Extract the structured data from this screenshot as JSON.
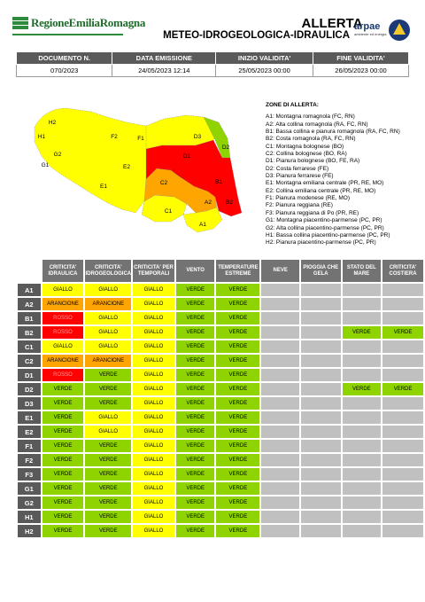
{
  "header": {
    "org_logo": "RegioneEmiliaRomagna",
    "title": "ALLERTA",
    "subtitle": "METEO-IDROGEOLOGICA-IDRAULICA",
    "arpae_logo": "arpae",
    "arpae_tagline": "ambiente ed energia",
    "pc_logo_icon": "protezione-civile-icon"
  },
  "doc_info": {
    "headers": [
      "DOCUMENTO N.",
      "DATA EMISSIONE",
      "INIZIO VALIDITA'",
      "FINE VALIDITA'"
    ],
    "values": [
      "070/2023",
      "24/05/2023 12:14",
      "25/05/2023 00:00",
      "26/05/2023 00:00"
    ]
  },
  "map": {
    "labels": [
      "H2",
      "H1",
      "G2",
      "G1",
      "F2",
      "F1",
      "E2",
      "E1",
      "D3",
      "D1",
      "D2",
      "C1",
      "C2",
      "B1",
      "B2",
      "A2",
      "A1"
    ],
    "colors": {
      "giallo": "#ffff00",
      "verde": "#8fd400",
      "arancione": "#ffa500",
      "rosso": "#ff0000"
    }
  },
  "legend": {
    "title": "ZONE DI ALLERTA:",
    "items": [
      "A1: Montagna romagnola (FC, RN)",
      "A2: Alta collina romagnola (RA, FC, RN)",
      "B1: Bassa collina e pianura romagnola (RA, FC, RN)",
      "B2: Costa romagnola (RA, FC, RN)",
      "C1: Montagna bolognese (BO)",
      "C2: Collina bolognese (BO, RA)",
      "D1: Pianura bolognese (BO, FE, RA)",
      "D2: Costa ferrarese (FE)",
      "D3: Pianura ferrarese (FE)",
      "E1: Montagna emiliana centrale (PR, RE, MO)",
      "E2: Collina emiliana centrale (PR, RE, MO)",
      "F1: Pianura modenese (RE, MO)",
      "F2: Pianura reggiana (RE)",
      "F3: Pianura reggiana di Po (PR, RE)",
      "G1: Montagna piacentino-parmense (PC, PR)",
      "G2: Alta collina piacentino-parmense (PC, PR)",
      "H1: Bassa collina piacentino-parmense (PC, PR)",
      "H2: Pianura piacentino-parmense (PC, PR)"
    ]
  },
  "alert_table": {
    "columns": [
      "CRITICITA' IDRAULICA",
      "CRITICITA' IDROGEOLOGICA",
      "CRITICITA' PER TEMPORALI",
      "VENTO",
      "TEMPERATURE ESTREME",
      "NEVE",
      "PIOGGIA CHE GELA",
      "STATO DEL MARE",
      "CRITICITA' COSTIERA"
    ],
    "rows": [
      {
        "zone": "A1",
        "cells": [
          "GIALLO",
          "GIALLO",
          "GIALLO",
          "VERDE",
          "VERDE",
          "",
          "",
          "",
          ""
        ]
      },
      {
        "zone": "A2",
        "cells": [
          "ARANCIONE",
          "ARANCIONE",
          "GIALLO",
          "VERDE",
          "VERDE",
          "",
          "",
          "",
          ""
        ]
      },
      {
        "zone": "B1",
        "cells": [
          "ROSSO",
          "GIALLO",
          "GIALLO",
          "VERDE",
          "VERDE",
          "",
          "",
          "",
          ""
        ]
      },
      {
        "zone": "B2",
        "cells": [
          "ROSSO",
          "GIALLO",
          "GIALLO",
          "VERDE",
          "VERDE",
          "",
          "",
          "VERDE",
          "VERDE"
        ]
      },
      {
        "zone": "C1",
        "cells": [
          "GIALLO",
          "GIALLO",
          "GIALLO",
          "VERDE",
          "VERDE",
          "",
          "",
          "",
          ""
        ]
      },
      {
        "zone": "C2",
        "cells": [
          "ARANCIONE",
          "ARANCIONE",
          "GIALLO",
          "VERDE",
          "VERDE",
          "",
          "",
          "",
          ""
        ]
      },
      {
        "zone": "D1",
        "cells": [
          "ROSSO",
          "VERDE",
          "GIALLO",
          "VERDE",
          "VERDE",
          "",
          "",
          "",
          ""
        ]
      },
      {
        "zone": "D2",
        "cells": [
          "VERDE",
          "VERDE",
          "GIALLO",
          "VERDE",
          "VERDE",
          "",
          "",
          "VERDE",
          "VERDE"
        ]
      },
      {
        "zone": "D3",
        "cells": [
          "VERDE",
          "VERDE",
          "GIALLO",
          "VERDE",
          "VERDE",
          "",
          "",
          "",
          ""
        ]
      },
      {
        "zone": "E1",
        "cells": [
          "VERDE",
          "GIALLO",
          "GIALLO",
          "VERDE",
          "VERDE",
          "",
          "",
          "",
          ""
        ]
      },
      {
        "zone": "E2",
        "cells": [
          "VERDE",
          "GIALLO",
          "GIALLO",
          "VERDE",
          "VERDE",
          "",
          "",
          "",
          ""
        ]
      },
      {
        "zone": "F1",
        "cells": [
          "VERDE",
          "VERDE",
          "GIALLO",
          "VERDE",
          "VERDE",
          "",
          "",
          "",
          ""
        ]
      },
      {
        "zone": "F2",
        "cells": [
          "VERDE",
          "VERDE",
          "GIALLO",
          "VERDE",
          "VERDE",
          "",
          "",
          "",
          ""
        ]
      },
      {
        "zone": "F3",
        "cells": [
          "VERDE",
          "VERDE",
          "GIALLO",
          "VERDE",
          "VERDE",
          "",
          "",
          "",
          ""
        ]
      },
      {
        "zone": "G1",
        "cells": [
          "VERDE",
          "VERDE",
          "GIALLO",
          "VERDE",
          "VERDE",
          "",
          "",
          "",
          ""
        ]
      },
      {
        "zone": "G2",
        "cells": [
          "VERDE",
          "VERDE",
          "GIALLO",
          "VERDE",
          "VERDE",
          "",
          "",
          "",
          ""
        ]
      },
      {
        "zone": "H1",
        "cells": [
          "VERDE",
          "VERDE",
          "GIALLO",
          "VERDE",
          "VERDE",
          "",
          "",
          "",
          ""
        ]
      },
      {
        "zone": "H2",
        "cells": [
          "VERDE",
          "VERDE",
          "GIALLO",
          "VERDE",
          "VERDE",
          "",
          "",
          "",
          ""
        ]
      }
    ]
  }
}
